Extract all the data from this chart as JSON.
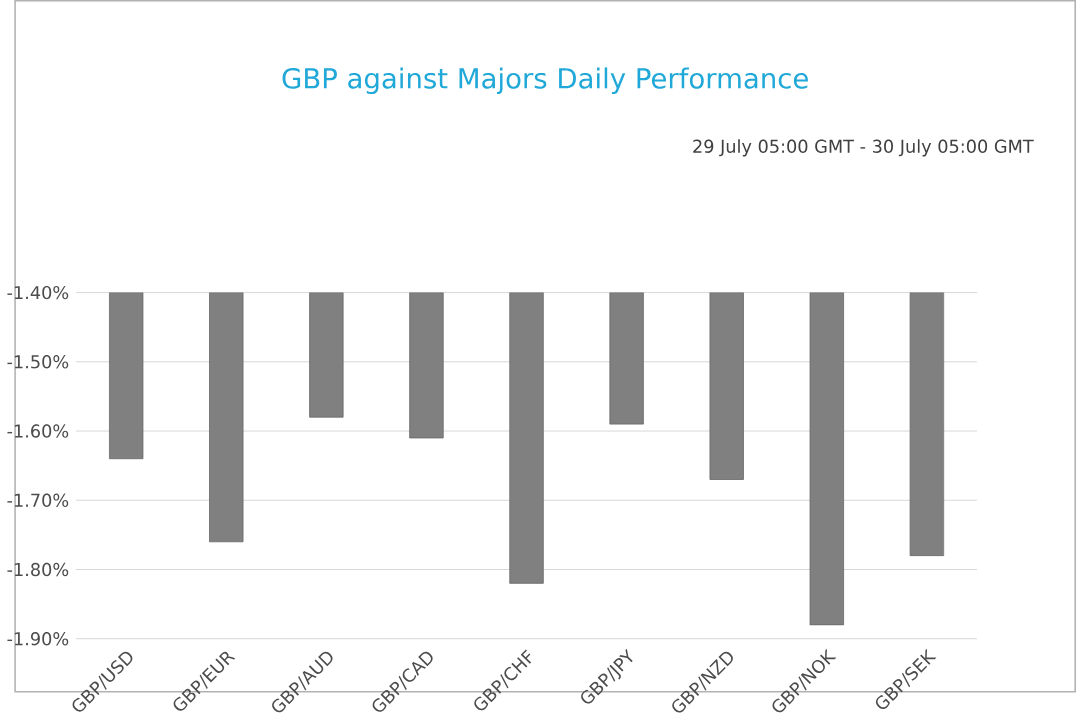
{
  "chart_data": {
    "type": "bar",
    "title": "GBP against Majors Daily Performance",
    "subtitle": "29 July 05:00 GMT - 30 July 05:00 GMT",
    "categories": [
      "GBP/USD",
      "GBP/EUR",
      "GBP/AUD",
      "GBP/CAD",
      "GBP/CHF",
      "GBP/JPY",
      "GBP/NZD",
      "GBP/NOK",
      "GBP/SEK"
    ],
    "values": [
      -1.64,
      -1.76,
      -1.58,
      -1.61,
      -1.82,
      -1.59,
      -1.67,
      -1.88,
      -1.78
    ],
    "color": "#808080",
    "ylim": [
      -1.9,
      -1.4
    ],
    "yticks": [
      {
        "value": -1.9,
        "label": "-1.90%"
      },
      {
        "value": -1.8,
        "label": "-1.80%"
      },
      {
        "value": -1.7,
        "label": "-1.70%"
      },
      {
        "value": -1.6,
        "label": "-1.60%"
      },
      {
        "value": -1.5,
        "label": "-1.50%"
      },
      {
        "value": -1.4,
        "label": "-1.40%"
      }
    ],
    "grid": "y"
  }
}
